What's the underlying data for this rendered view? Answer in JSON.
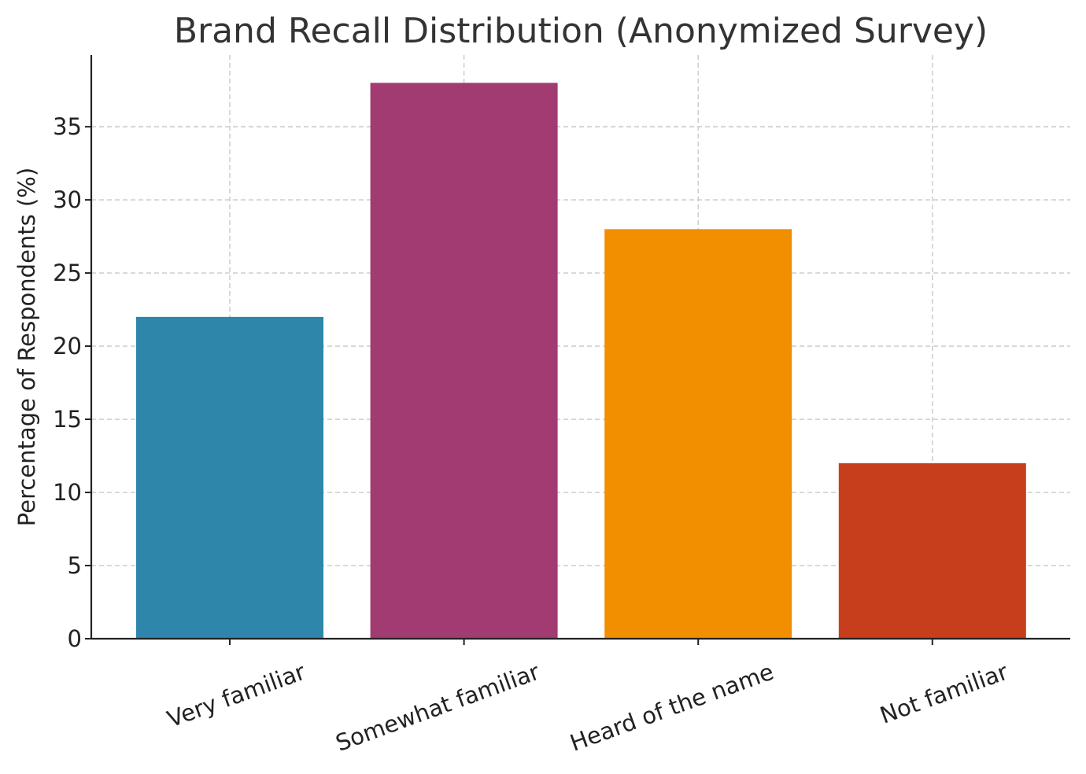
{
  "chart_data": {
    "type": "bar",
    "title": "Brand Recall Distribution (Anonymized Survey)",
    "xlabel": "",
    "ylabel": "Percentage of Respondents (%)",
    "categories": [
      "Very familiar",
      "Somewhat familiar",
      "Heard of the name",
      "Not familiar"
    ],
    "values": [
      22,
      38,
      28,
      12
    ],
    "colors": [
      "#2e86ab",
      "#a23b72",
      "#f18f01",
      "#c73e1d"
    ],
    "ylim": [
      0,
      39.9
    ],
    "yticks": [
      0,
      5,
      10,
      15,
      20,
      25,
      30,
      35
    ],
    "grid": true,
    "xtick_rotation_deg": -20
  }
}
